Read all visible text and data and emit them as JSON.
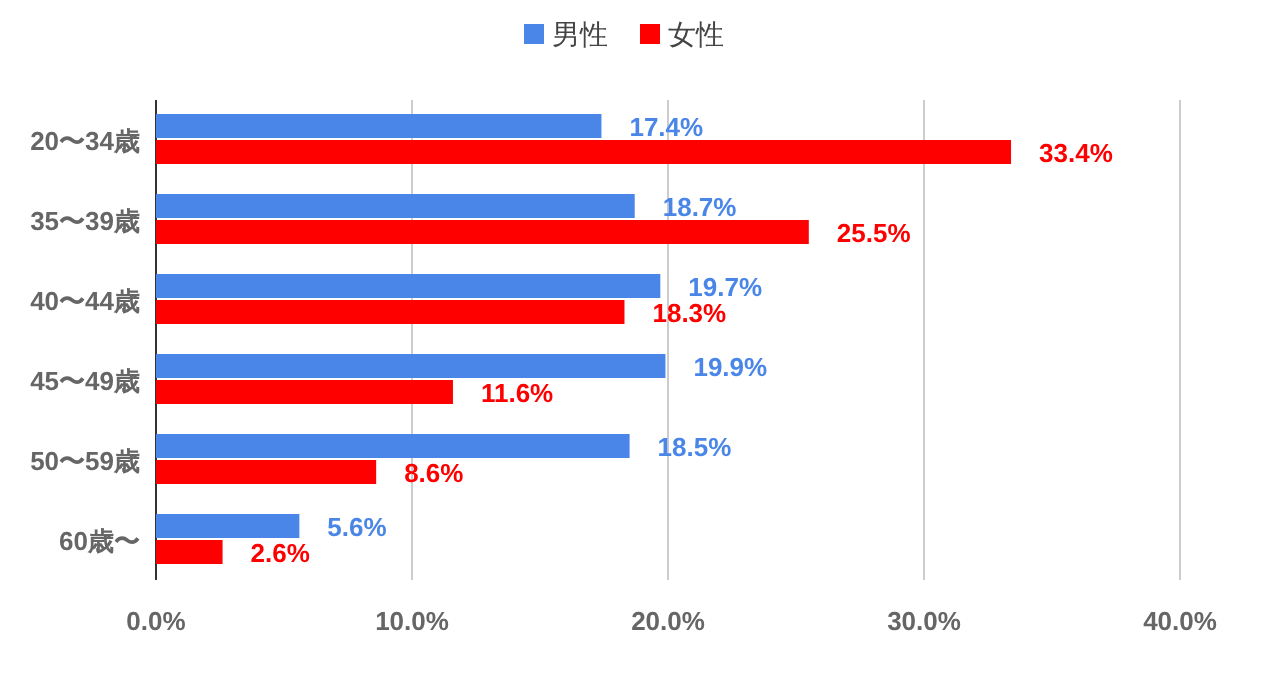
{
  "chart_data": {
    "type": "bar",
    "orientation": "horizontal",
    "categories": [
      "20〜34歳",
      "35〜39歳",
      "40〜44歳",
      "45〜49歳",
      "50〜59歳",
      "60歳〜"
    ],
    "series": [
      {
        "name": "男性",
        "color": "#4a86e8",
        "values": [
          17.4,
          18.7,
          19.7,
          19.9,
          18.5,
          5.6
        ],
        "value_labels": [
          "17.4%",
          "18.7%",
          "19.7%",
          "19.9%",
          "18.5%",
          "5.6%"
        ]
      },
      {
        "name": "女性",
        "color": "#ff0000",
        "values": [
          33.4,
          25.5,
          18.3,
          11.6,
          8.6,
          2.6
        ],
        "value_labels": [
          "33.4%",
          "25.5%",
          "18.3%",
          "11.6%",
          "8.6%",
          "2.6%"
        ]
      }
    ],
    "xlim": [
      0,
      40
    ],
    "xticks": [
      {
        "value": 0,
        "label": "0.0%"
      },
      {
        "value": 10,
        "label": "10.0%"
      },
      {
        "value": 20,
        "label": "20.0%"
      },
      {
        "value": 30,
        "label": "30.0%"
      },
      {
        "value": 40,
        "label": "40.0%"
      }
    ],
    "grid": "x",
    "legend": "top"
  }
}
